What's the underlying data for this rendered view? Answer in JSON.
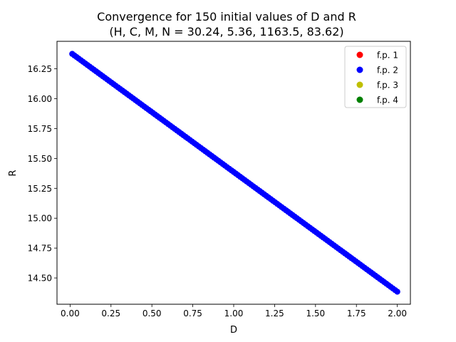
{
  "chart_data": {
    "type": "scatter",
    "title_line1": "Convergence for 150 initial values of D and R",
    "title_line2": "(H, C, M, N = 30.24, 5.36, 1163.5, 83.62)",
    "xlabel": "D",
    "ylabel": "R",
    "xlim": [
      -0.08,
      2.08
    ],
    "ylim": [
      14.28,
      16.48
    ],
    "xticks": [
      0.0,
      0.25,
      0.5,
      0.75,
      1.0,
      1.25,
      1.5,
      1.75,
      2.0
    ],
    "xtick_labels": [
      "0.00",
      "0.25",
      "0.50",
      "0.75",
      "1.00",
      "1.25",
      "1.50",
      "1.75",
      "2.00"
    ],
    "yticks": [
      14.5,
      14.75,
      15.0,
      15.25,
      15.5,
      15.75,
      16.0,
      16.25
    ],
    "ytick_labels": [
      "14.50",
      "14.75",
      "15.00",
      "15.25",
      "15.50",
      "15.75",
      "16.00",
      "16.25"
    ],
    "grid": false,
    "legend_position": "top-right",
    "legend": [
      {
        "label": "f.p. 1",
        "color": "#ff0000"
      },
      {
        "label": "f.p. 2",
        "color": "#0000ff"
      },
      {
        "label": "f.p. 3",
        "color": "#bfbf00"
      },
      {
        "label": "f.p. 4",
        "color": "#008000"
      }
    ],
    "series": [
      {
        "name": "f.p. 2",
        "color": "#0000ff",
        "x_start": 0.013,
        "x_end": 2.0,
        "count": 150,
        "y_start": 16.375,
        "y_end": 14.385
      }
    ]
  }
}
